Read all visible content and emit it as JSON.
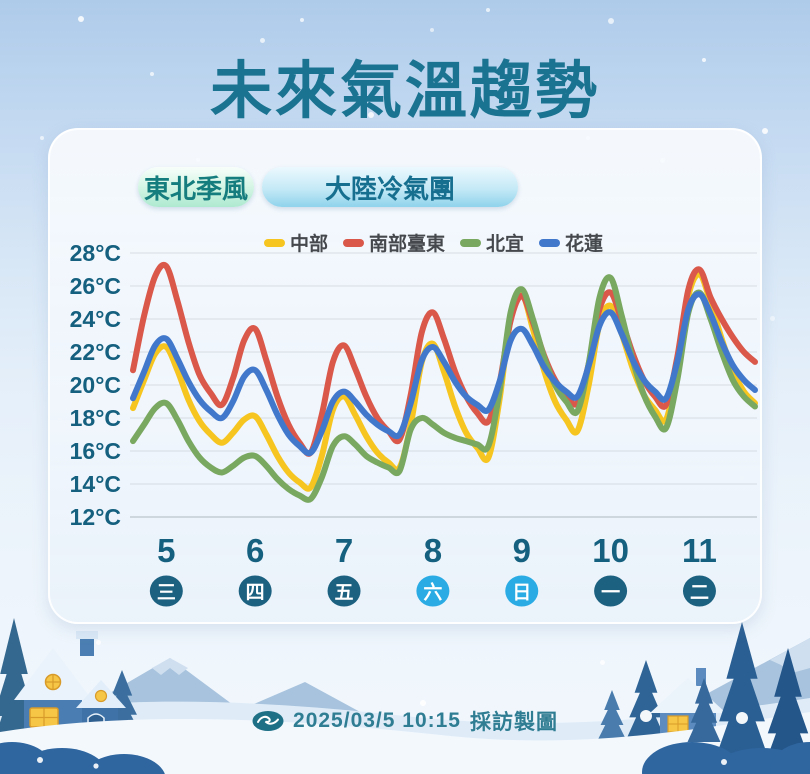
{
  "title": "未來氣溫趨勢",
  "period_badges": [
    {
      "label": "東北季風"
    },
    {
      "label": "大陸冷氣團"
    }
  ],
  "footer": {
    "timestamp": "2025/03/5 10:15",
    "credit": "採訪製圖"
  },
  "colors": {
    "title": "#1a7390",
    "axis_label": "#15607f",
    "day_label": "#15607f",
    "gridline": "#d6dce2",
    "baseline": "#c3ccd4",
    "weekday_badge": "#1c6180",
    "weekday_badge_weekend": "#2aabe4",
    "weekday_text": "#ffffff"
  },
  "chart_data": {
    "type": "line",
    "title": "未來氣溫趨勢",
    "xlabel": "",
    "ylabel": "°C",
    "ylim": [
      12,
      28
    ],
    "grid": true,
    "legend_position": "top",
    "yticks": [
      {
        "v": 28,
        "label": "28°C"
      },
      {
        "v": 26,
        "label": "26°C"
      },
      {
        "v": 24,
        "label": "24°C"
      },
      {
        "v": 22,
        "label": "22°C"
      },
      {
        "v": 20,
        "label": "20°C"
      },
      {
        "v": 18,
        "label": "18°C"
      },
      {
        "v": 16,
        "label": "16°C"
      },
      {
        "v": 14,
        "label": "14°C"
      },
      {
        "v": 12,
        "label": "12°C"
      }
    ],
    "x_days": [
      {
        "day": "5",
        "weekday": "三",
        "weekend": false
      },
      {
        "day": "6",
        "weekday": "四",
        "weekend": false
      },
      {
        "day": "7",
        "weekday": "五",
        "weekend": false
      },
      {
        "day": "8",
        "weekday": "六",
        "weekend": true
      },
      {
        "day": "9",
        "weekday": "日",
        "weekend": true
      },
      {
        "day": "10",
        "weekday": "一",
        "weekend": false
      },
      {
        "day": "11",
        "weekday": "二",
        "weekend": false
      }
    ],
    "samples_per_day": 8,
    "series": [
      {
        "id": "central",
        "name": "中部",
        "color": "#f6c51f",
        "values": [
          18.6,
          20.3,
          21.9,
          22.3,
          20.9,
          19.1,
          17.8,
          17.0,
          16.5,
          17.1,
          17.9,
          18.1,
          17.0,
          15.7,
          14.7,
          14.1,
          13.8,
          15.7,
          18.5,
          19.3,
          18.2,
          16.9,
          15.9,
          15.3,
          15.0,
          17.6,
          21.4,
          22.5,
          20.8,
          18.7,
          17.1,
          16.2,
          15.6,
          19.1,
          24.0,
          25.5,
          23.4,
          20.9,
          19.0,
          17.9,
          17.2,
          19.9,
          23.7,
          24.8,
          23.1,
          21.0,
          19.4,
          18.5,
          17.9,
          21.0,
          25.4,
          26.7,
          25.0,
          22.8,
          20.9,
          19.6,
          18.9
        ]
      },
      {
        "id": "south-taitung",
        "name": "南部臺東",
        "color": "#d9584a",
        "values": [
          20.9,
          24.2,
          26.6,
          27.2,
          25.1,
          22.6,
          20.6,
          19.5,
          18.8,
          20.4,
          22.7,
          23.4,
          21.5,
          19.3,
          17.6,
          16.5,
          15.9,
          18.2,
          21.4,
          22.4,
          21.0,
          19.3,
          18.0,
          17.2,
          16.7,
          19.4,
          23.2,
          24.4,
          22.8,
          20.8,
          19.3,
          18.3,
          17.8,
          20.1,
          23.9,
          25.4,
          23.8,
          21.8,
          20.3,
          19.4,
          18.9,
          21.2,
          24.6,
          25.6,
          23.9,
          21.9,
          20.3,
          19.3,
          18.8,
          21.7,
          25.8,
          27.0,
          25.3,
          24.0,
          22.9,
          22.0,
          21.4
        ]
      },
      {
        "id": "north-yilan",
        "name": "北宜",
        "color": "#79a861",
        "values": [
          16.6,
          17.6,
          18.6,
          18.9,
          17.9,
          16.6,
          15.6,
          15.0,
          14.7,
          15.1,
          15.6,
          15.7,
          15.1,
          14.3,
          13.7,
          13.3,
          13.1,
          14.4,
          16.3,
          16.9,
          16.4,
          15.7,
          15.3,
          15.0,
          14.8,
          17.3,
          18.0,
          17.6,
          17.1,
          16.8,
          16.6,
          16.4,
          16.3,
          19.6,
          24.4,
          25.8,
          24.0,
          21.7,
          20.0,
          19.0,
          18.4,
          21.2,
          25.3,
          26.5,
          24.2,
          21.5,
          19.4,
          18.1,
          17.4,
          20.3,
          24.4,
          25.6,
          24.0,
          22.0,
          20.3,
          19.3,
          18.7
        ]
      },
      {
        "id": "hualien",
        "name": "花蓮",
        "color": "#4178cc",
        "values": [
          19.2,
          20.8,
          22.4,
          22.8,
          21.6,
          20.2,
          19.1,
          18.4,
          18.0,
          19.0,
          20.5,
          20.9,
          19.7,
          18.2,
          17.0,
          16.3,
          15.9,
          17.2,
          19.0,
          19.6,
          19.0,
          18.2,
          17.6,
          17.2,
          17.0,
          18.9,
          21.5,
          22.3,
          21.4,
          20.2,
          19.3,
          18.8,
          18.5,
          20.2,
          22.7,
          23.4,
          22.4,
          21.1,
          20.2,
          19.6,
          19.3,
          21.1,
          23.6,
          24.4,
          23.1,
          21.5,
          20.3,
          19.6,
          19.2,
          21.4,
          24.6,
          25.5,
          24.3,
          22.6,
          21.2,
          20.3,
          19.7
        ]
      }
    ]
  }
}
